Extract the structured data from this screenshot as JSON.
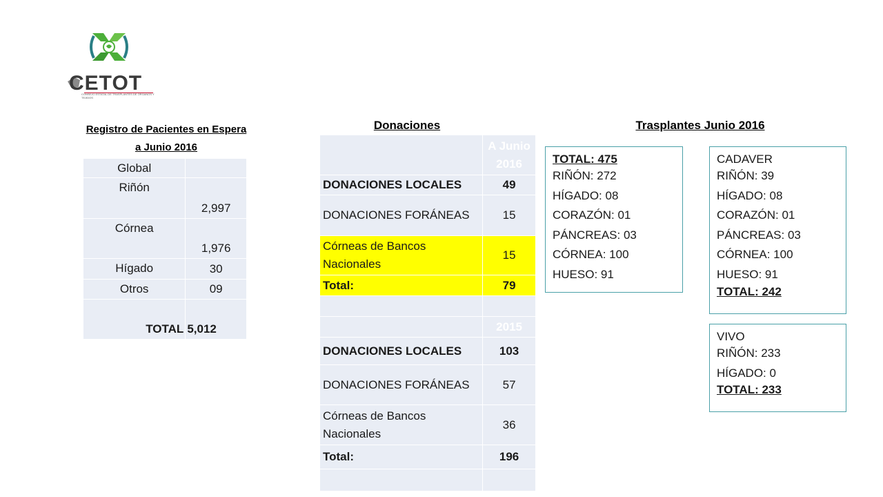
{
  "logo": {
    "brand": "CETOT",
    "subtitle": "CONSEJO ESTATAL DE TRASPLANTES DE ÓRGANOS Y TEJIDOS"
  },
  "registro": {
    "title_line1": "Registro de Pacientes en Espera",
    "title_line2": "a Junio 2016",
    "rows": [
      {
        "label": "Global",
        "value": ""
      },
      {
        "label": "Riñón",
        "value": "2,997"
      },
      {
        "label": "Córnea",
        "value": "1,976"
      },
      {
        "label": "Hígado",
        "value": "30"
      },
      {
        "label": "Otros",
        "value": "09"
      }
    ],
    "total_label": "TOTAL",
    "total_value": "5,012"
  },
  "donaciones": {
    "title": "Donaciones",
    "header_2016": "A Junio 2016",
    "rows_2016": [
      {
        "label": "DONACIONES LOCALES",
        "value": "49"
      },
      {
        "label": "DONACIONES FORÁNEAS",
        "value": "15"
      },
      {
        "label": "Córneas de Bancos Nacionales",
        "value": "15"
      },
      {
        "label": "Total:",
        "value": "79"
      }
    ],
    "header_2015": "2015",
    "rows_2015": [
      {
        "label": "DONACIONES LOCALES",
        "value": "103"
      },
      {
        "label": "DONACIONES FORÁNEAS",
        "value": "57"
      },
      {
        "label": "Córneas de Bancos Nacionales",
        "value": "36"
      },
      {
        "label": "Total:",
        "value": "196"
      }
    ]
  },
  "trasplantes": {
    "title": "Trasplantes Junio 2016",
    "total_box": {
      "total": "TOTAL: 475",
      "lines": [
        "RIÑÓN: 272",
        "HÍGADO: 08",
        "CORAZÓN: 01",
        "PÁNCREAS: 03",
        "CÓRNEA: 100",
        "HUESO: 91"
      ]
    },
    "cadaver_box": {
      "heading": "CADAVER",
      "lines": [
        "RIÑÓN: 39",
        "HÍGADO: 08",
        "CORAZÓN: 01",
        "PÁNCREAS: 03",
        "CÓRNEA: 100",
        "HUESO: 91"
      ],
      "total": "TOTAL: 242"
    },
    "vivo_box": {
      "heading": "VIVO",
      "lines": [
        "RIÑÓN: 233",
        "HÍGADO: 0"
      ],
      "total": "TOTAL: 233"
    }
  },
  "colors": {
    "table_bg": "#e9edf5",
    "highlight": "#ffff00",
    "box_border": "#4aa0a8",
    "logo_green": "#4caf3a",
    "logo_teal": "#2a7f86"
  }
}
